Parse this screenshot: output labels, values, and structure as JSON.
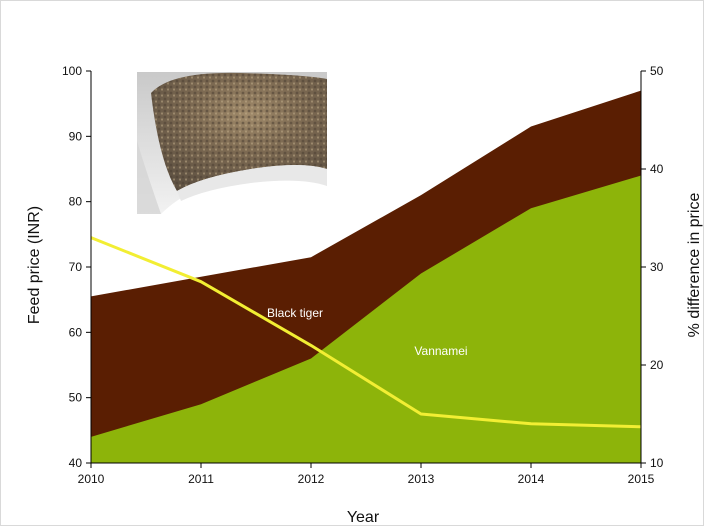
{
  "chart_data": {
    "type": "area",
    "x": [
      2010,
      2011,
      2012,
      2013,
      2014,
      2015
    ],
    "xlabel": "Year",
    "ylabel": "Feed price (INR)",
    "y2label": "% difference in price",
    "ylim": [
      40,
      100
    ],
    "y2lim": [
      10,
      50
    ],
    "yticks": [
      40,
      50,
      60,
      70,
      80,
      90,
      100
    ],
    "y2ticks": [
      10,
      20,
      30,
      40,
      50
    ],
    "series": [
      {
        "name": "Black tiger",
        "type": "area",
        "axis": "left",
        "color": "#5a1e02",
        "values": [
          65.5,
          68.5,
          71.5,
          81,
          91.5,
          97
        ]
      },
      {
        "name": "Vannamei",
        "type": "area",
        "axis": "left",
        "color": "#8db40a",
        "values": [
          44,
          49,
          56,
          69,
          79,
          84
        ]
      },
      {
        "name": "",
        "type": "line",
        "axis": "right",
        "color": "#f2ee33",
        "values": [
          33,
          28.5,
          22,
          15,
          14,
          13.7
        ]
      }
    ],
    "grid": false,
    "legend": "none"
  },
  "inset_image": "feed-pellets-photo"
}
